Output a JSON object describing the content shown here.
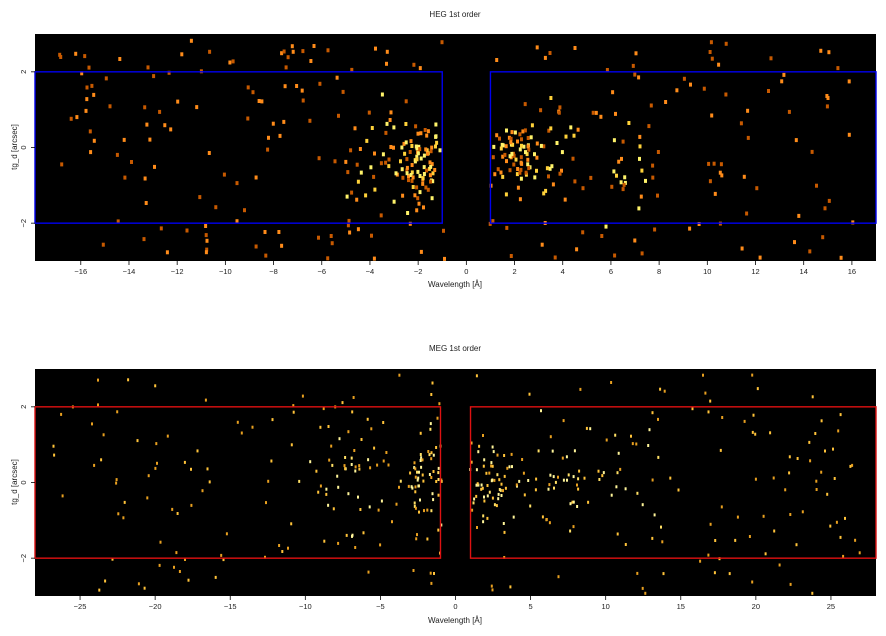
{
  "chart_data": [
    {
      "type": "heatmap",
      "title": "HEG 1st order",
      "xlabel": "Wavelength [Å]",
      "ylabel": "tg_d [arcsec]",
      "xlim": [
        -17.9,
        17.0
      ],
      "ylim": [
        -3.0,
        3.0
      ],
      "xticks": [
        -16,
        -14,
        -12,
        -10,
        -8,
        -6,
        -4,
        -2,
        0,
        2,
        4,
        6,
        8,
        10,
        12,
        14,
        16
      ],
      "yticks": [
        -2,
        0,
        2
      ],
      "region_color": "#0000ee",
      "regions": [
        {
          "x0": -17.9,
          "x1": -1.0,
          "y0": -2.0,
          "y1": 2.0
        },
        {
          "x0": 1.0,
          "x1": 17.0,
          "y0": -2.0,
          "y1": 2.0
        }
      ],
      "background": "#000000",
      "colormap": [
        "#c85a00",
        "#ff8c1a",
        "#ffd23a",
        "#fff36a"
      ],
      "clusters": [
        {
          "x": -2.0,
          "y": -0.4,
          "sx": 0.45,
          "sy": 0.5,
          "n": 70
        },
        {
          "x": -3.3,
          "y": -0.2,
          "sx": 0.9,
          "sy": 0.7,
          "n": 30
        },
        {
          "x": 2.0,
          "y": -0.1,
          "sx": 0.45,
          "sy": 0.5,
          "n": 60
        },
        {
          "x": 3.3,
          "y": 0.1,
          "sx": 0.9,
          "sy": 0.7,
          "n": 25
        },
        {
          "x": 6.8,
          "y": -0.3,
          "sx": 0.5,
          "sy": 0.6,
          "n": 18
        }
      ],
      "uniform": {
        "xr": [
          -17,
          16
        ],
        "yr": [
          -2.9,
          2.9
        ],
        "n": 260
      }
    },
    {
      "type": "heatmap",
      "title": "MEG 1st order",
      "xlabel": "Wavelength [Å]",
      "ylabel": "tg_d [arcsec]",
      "xlim": [
        -28.0,
        28.0
      ],
      "ylim": [
        -3.0,
        3.0
      ],
      "xticks": [
        -25,
        -20,
        -15,
        -10,
        -5,
        0,
        5,
        10,
        15,
        20,
        25
      ],
      "yticks": [
        -2,
        0,
        2
      ],
      "region_color": "#dd1111",
      "regions": [
        {
          "x0": -28.0,
          "x1": -1.0,
          "y0": -2.0,
          "y1": 2.0
        },
        {
          "x0": 1.0,
          "x1": 28.0,
          "y0": -2.0,
          "y1": 2.0
        }
      ],
      "background": "#000000",
      "colormap": [
        "#e8a020",
        "#ffc33a",
        "#ffe066",
        "#fff59a"
      ],
      "clusters": [
        {
          "x": -2.0,
          "y": 0.0,
          "sx": 1.0,
          "sy": 0.6,
          "n": 60
        },
        {
          "x": -7.0,
          "y": 0.0,
          "sx": 1.5,
          "sy": 0.8,
          "n": 40
        },
        {
          "x": 2.0,
          "y": 0.0,
          "sx": 1.0,
          "sy": 0.5,
          "n": 55
        },
        {
          "x": 7.0,
          "y": 0.0,
          "sx": 1.5,
          "sy": 0.7,
          "n": 40
        },
        {
          "x": 12.0,
          "y": 0.0,
          "sx": 1.5,
          "sy": 0.8,
          "n": 20
        }
      ],
      "uniform": {
        "xr": [
          -27,
          27
        ],
        "yr": [
          -2.9,
          2.9
        ],
        "n": 220
      }
    }
  ]
}
